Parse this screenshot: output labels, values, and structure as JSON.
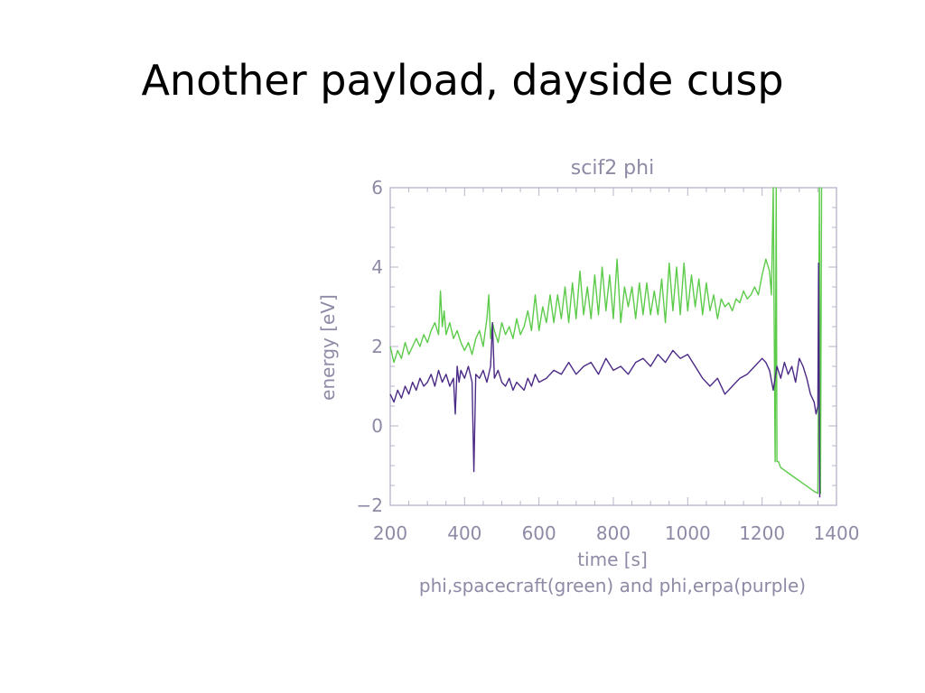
{
  "slide": {
    "title": "Another payload, dayside cusp"
  },
  "chart_data": {
    "type": "line",
    "title": "scif2 phi",
    "xlabel": "time [s]",
    "ylabel": "energy [eV]",
    "caption": "phi,spacecraft(green) and phi,erpa(purple)",
    "xlim": [
      200,
      1400
    ],
    "ylim": [
      -2,
      6
    ],
    "xticks": [
      200,
      400,
      600,
      800,
      1000,
      1200,
      1400
    ],
    "yticks": [
      -2,
      0,
      2,
      4,
      6
    ],
    "grid": false,
    "colors": {
      "axis": "#b6b3c8",
      "text": "#8e8aa6",
      "green": "#5ccb4a",
      "purple": "#4b2a86"
    },
    "series": [
      {
        "color": "green",
        "x": [
          200,
          210,
          220,
          230,
          240,
          250,
          260,
          270,
          280,
          290,
          300,
          310,
          320,
          330,
          335,
          340,
          345,
          350,
          360,
          370,
          380,
          390,
          400,
          410,
          420,
          430,
          440,
          450,
          460,
          465,
          470,
          475,
          480,
          490,
          500,
          510,
          520,
          530,
          540,
          550,
          560,
          570,
          580,
          590,
          600,
          610,
          620,
          630,
          640,
          650,
          660,
          670,
          680,
          690,
          700,
          710,
          720,
          730,
          740,
          750,
          760,
          770,
          780,
          790,
          800,
          810,
          820,
          830,
          840,
          850,
          860,
          870,
          880,
          890,
          900,
          910,
          920,
          930,
          940,
          950,
          960,
          970,
          980,
          990,
          1000,
          1010,
          1020,
          1030,
          1040,
          1050,
          1060,
          1070,
          1080,
          1090,
          1100,
          1110,
          1120,
          1130,
          1140,
          1150,
          1160,
          1170,
          1180,
          1190,
          1200,
          1210,
          1220,
          1225,
          1230,
          1235,
          1238,
          1240,
          1244,
          1250,
          1280,
          1310,
          1340,
          1350,
          1354,
          1357,
          1360
        ],
        "y": [
          2.0,
          1.6,
          1.9,
          1.7,
          2.1,
          1.8,
          2.0,
          2.2,
          2.0,
          2.3,
          2.1,
          2.4,
          2.6,
          2.3,
          3.4,
          2.5,
          2.9,
          2.3,
          2.6,
          2.2,
          2.4,
          2.1,
          1.9,
          2.1,
          1.8,
          2.2,
          2.4,
          2.0,
          2.7,
          3.3,
          2.2,
          2.6,
          2.4,
          2.1,
          2.6,
          2.3,
          2.5,
          2.2,
          2.7,
          2.3,
          2.5,
          2.9,
          2.4,
          3.3,
          2.4,
          3.0,
          2.6,
          3.3,
          2.6,
          3.3,
          2.7,
          3.5,
          2.6,
          3.6,
          2.7,
          3.9,
          2.8,
          3.5,
          2.7,
          3.8,
          2.8,
          4.0,
          2.9,
          3.8,
          2.7,
          4.2,
          2.6,
          3.5,
          3.0,
          3.5,
          2.7,
          3.6,
          2.8,
          3.6,
          2.8,
          3.4,
          2.8,
          3.7,
          2.6,
          4.1,
          2.9,
          4.0,
          2.8,
          4.1,
          2.9,
          3.8,
          3.0,
          3.7,
          2.8,
          3.6,
          2.9,
          3.3,
          2.7,
          3.2,
          3.0,
          3.1,
          2.9,
          3.2,
          3.1,
          3.4,
          3.2,
          3.3,
          3.5,
          3.3,
          3.8,
          4.2,
          3.9,
          3.3,
          6.0,
          -0.9,
          6.0,
          -0.9,
          -0.9,
          -1.05,
          -1.25,
          -1.45,
          -1.65,
          -1.7,
          6.0,
          -1.7,
          6.0
        ]
      },
      {
        "color": "purple",
        "x": [
          200,
          210,
          220,
          230,
          240,
          250,
          260,
          270,
          280,
          290,
          300,
          310,
          320,
          330,
          340,
          350,
          360,
          370,
          375,
          380,
          385,
          390,
          400,
          410,
          420,
          425,
          430,
          440,
          450,
          460,
          470,
          475,
          480,
          490,
          500,
          510,
          520,
          530,
          540,
          550,
          560,
          570,
          580,
          590,
          600,
          620,
          640,
          660,
          680,
          700,
          720,
          740,
          760,
          780,
          800,
          820,
          840,
          860,
          880,
          900,
          920,
          940,
          960,
          980,
          1000,
          1020,
          1040,
          1060,
          1080,
          1100,
          1120,
          1140,
          1160,
          1180,
          1200,
          1210,
          1220,
          1230,
          1240,
          1250,
          1260,
          1270,
          1280,
          1290,
          1300,
          1310,
          1320,
          1330,
          1340,
          1345,
          1350,
          1352,
          1355
        ],
        "y": [
          0.8,
          0.6,
          0.9,
          0.7,
          1.0,
          0.8,
          1.1,
          0.9,
          1.2,
          1.0,
          1.1,
          1.3,
          1.0,
          1.4,
          1.1,
          1.3,
          1.0,
          1.2,
          0.3,
          1.5,
          1.1,
          1.4,
          1.2,
          1.5,
          1.1,
          -1.15,
          1.3,
          1.2,
          1.4,
          1.1,
          1.5,
          2.6,
          1.2,
          1.4,
          1.1,
          1.0,
          1.2,
          0.9,
          1.1,
          1.0,
          0.9,
          1.2,
          1.0,
          1.3,
          1.1,
          1.2,
          1.4,
          1.3,
          1.6,
          1.3,
          1.5,
          1.6,
          1.3,
          1.7,
          1.4,
          1.5,
          1.3,
          1.6,
          1.7,
          1.5,
          1.8,
          1.6,
          1.9,
          1.7,
          1.8,
          1.5,
          1.2,
          1.0,
          1.2,
          0.8,
          1.0,
          1.2,
          1.3,
          1.5,
          1.7,
          1.6,
          1.4,
          0.9,
          1.5,
          1.2,
          1.6,
          1.3,
          1.5,
          1.1,
          1.7,
          1.5,
          1.2,
          0.8,
          0.6,
          0.3,
          0.5,
          4.1,
          -1.8
        ]
      }
    ]
  }
}
